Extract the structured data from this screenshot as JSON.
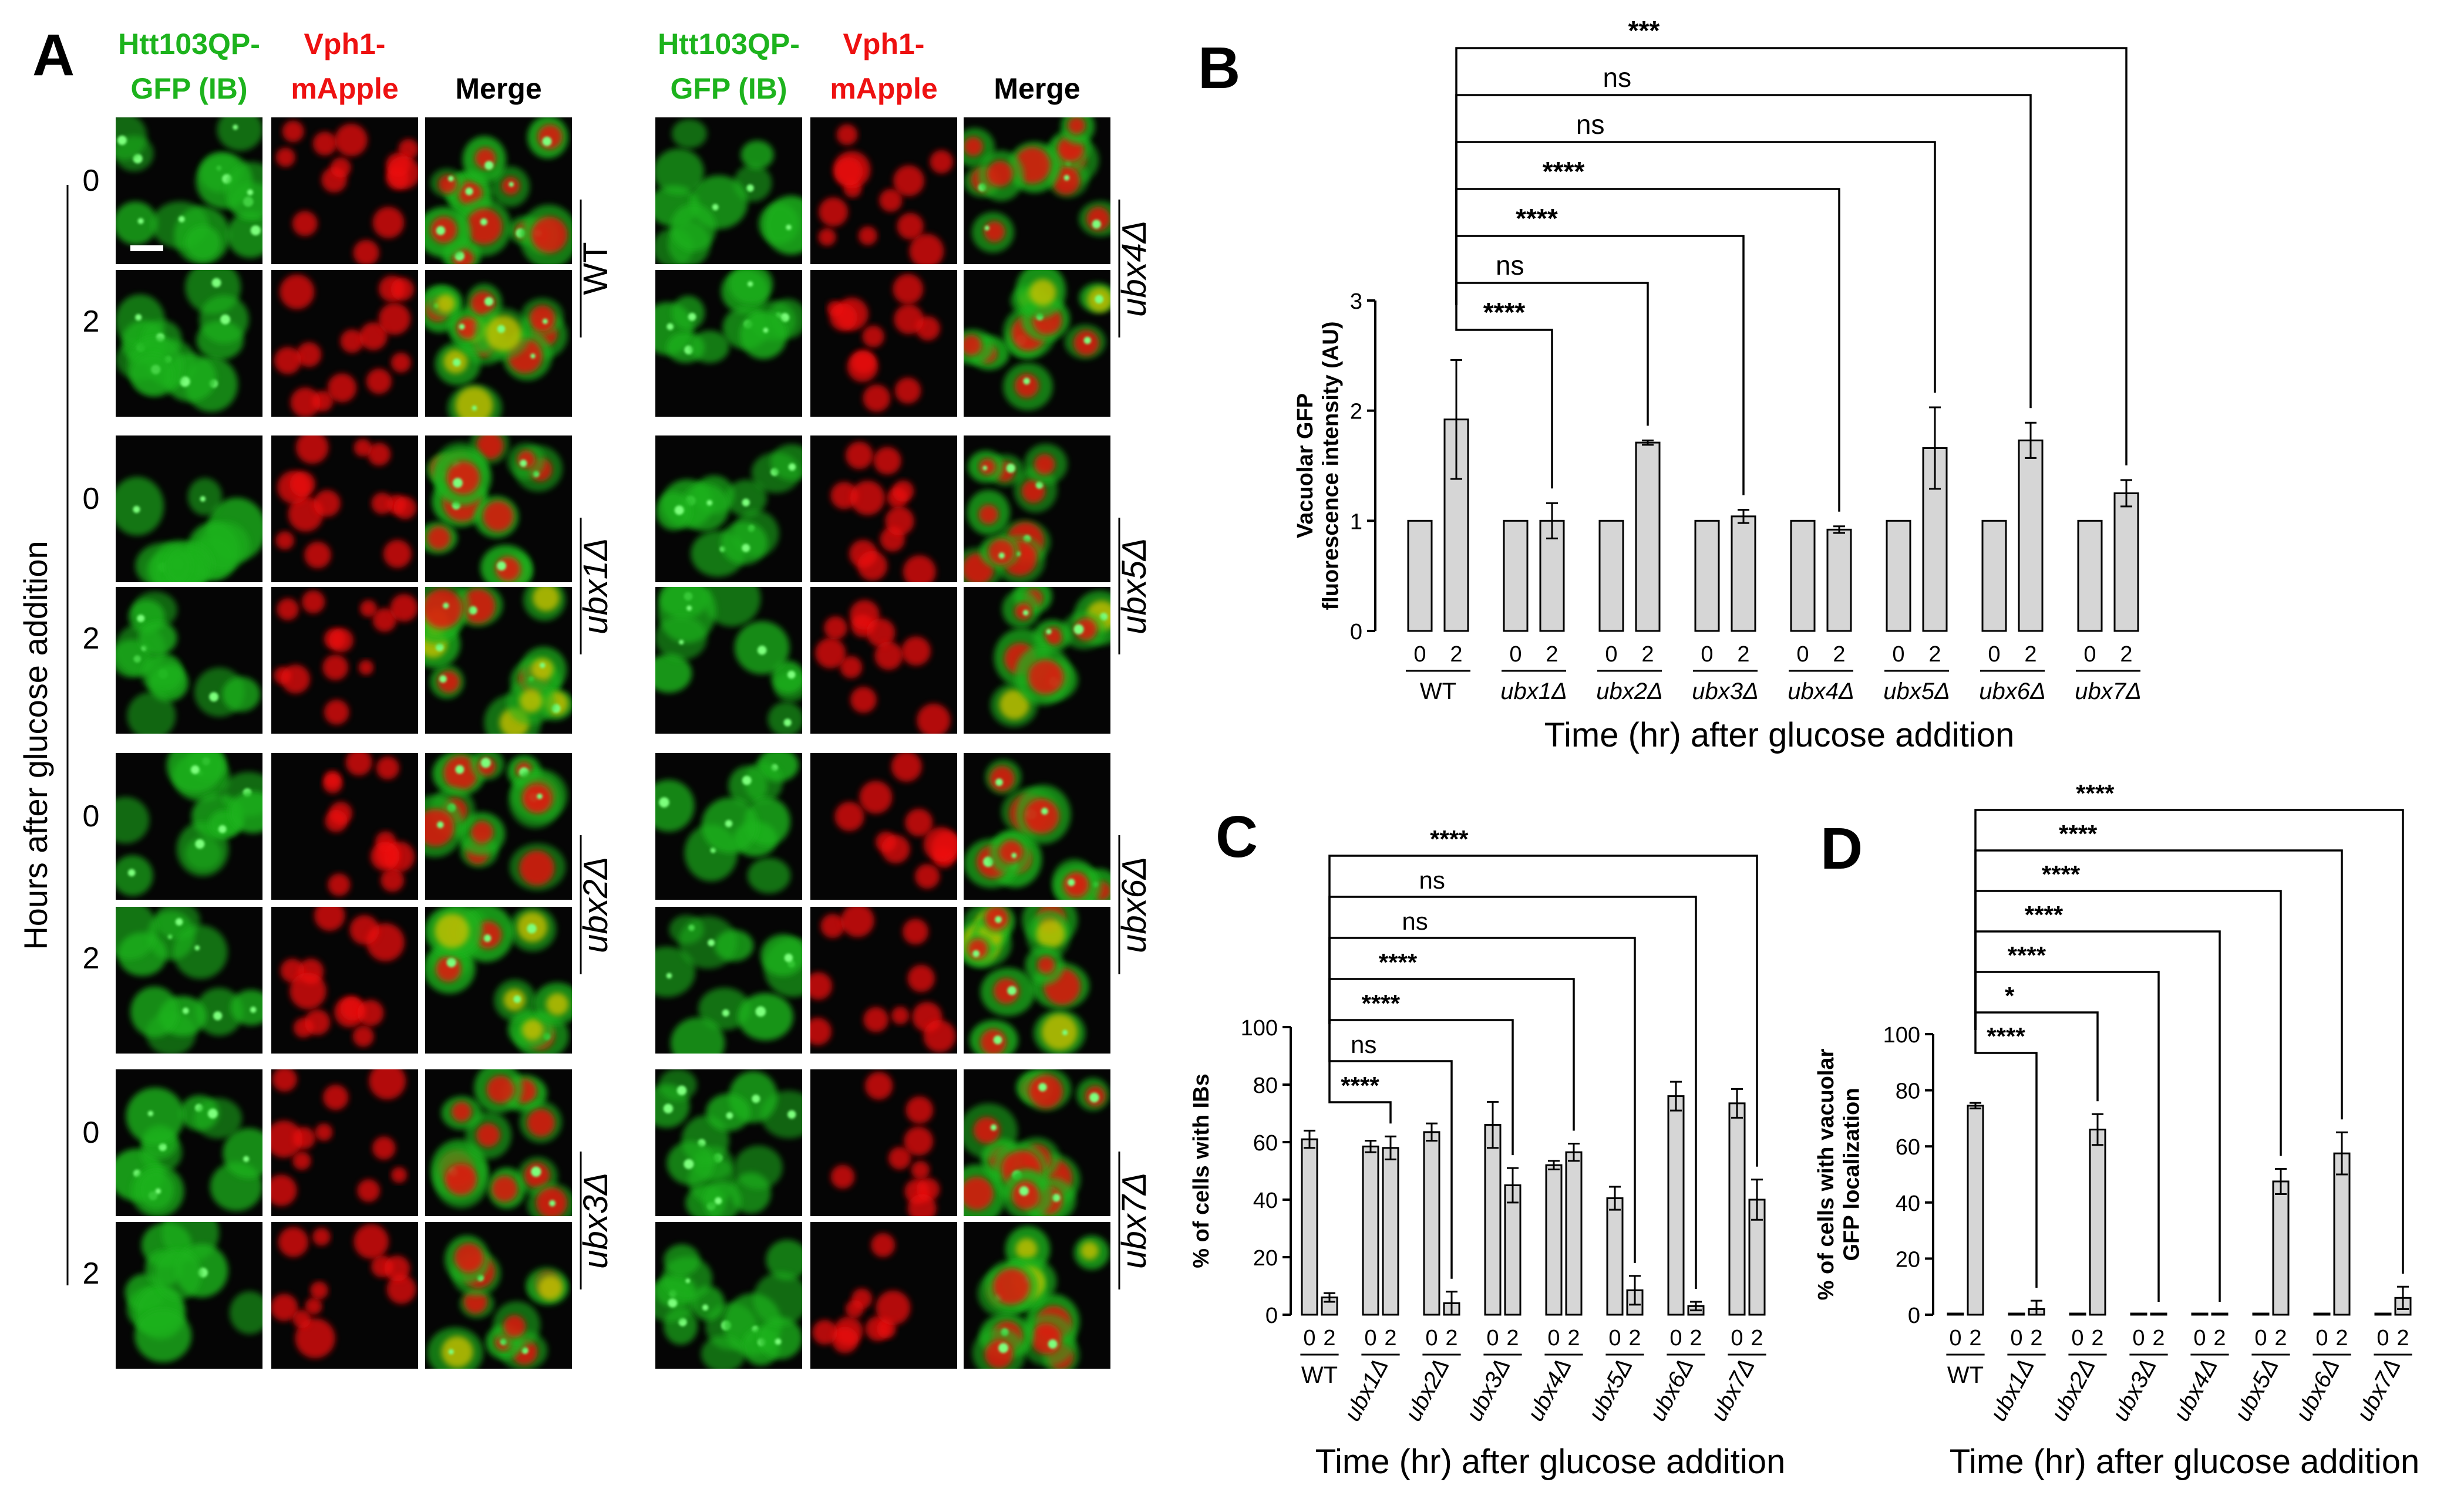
{
  "panel_letters": {
    "a": "A",
    "b": "B",
    "c": "C",
    "d": "D"
  },
  "panel_a": {
    "column_headers": [
      {
        "line1": "Htt103QP-",
        "line2": "GFP (IB)",
        "color": "#1db31d"
      },
      {
        "line1": "Vph1-",
        "line2": "mApple",
        "color": "#ee1111"
      },
      {
        "line1": "Merge",
        "line2": "",
        "color": "#000000"
      }
    ],
    "y_axis_label": "Hours after glucose addition",
    "time_labels": [
      "0",
      "2"
    ],
    "strains_left": [
      "WT",
      "ubx1Δ",
      "ubx2Δ",
      "ubx3Δ"
    ],
    "strains_right": [
      "ubx4Δ",
      "ubx5Δ",
      "ubx6Δ",
      "ubx7Δ"
    ],
    "colors": {
      "gfp": "#1db31d",
      "mapple": "#ee1111",
      "yellow": "#c8c000",
      "background": "#050505"
    }
  },
  "chart_data": [
    {
      "panel": "B",
      "type": "bar",
      "ylabel": "Vacuolar GFP fluorescence intensity (AU)",
      "xlabel": "Time (hr) after glucose addition",
      "ylim": [
        0,
        3
      ],
      "yticks": [
        "0",
        "1",
        "2",
        "3"
      ],
      "groups": [
        "WT",
        "ubx1Δ",
        "ubx2Δ",
        "ubx3Δ",
        "ubx4Δ",
        "ubx5Δ",
        "ubx6Δ",
        "ubx7Δ"
      ],
      "time_points": [
        "0",
        "2"
      ],
      "values_0h": [
        1,
        1,
        1,
        1,
        1,
        1,
        1,
        1
      ],
      "values_2h": [
        1.92,
        1.0,
        1.71,
        1.04,
        0.92,
        1.66,
        1.73,
        1.25
      ],
      "errors_2h": [
        0.54,
        0.16,
        0.02,
        0.06,
        0.03,
        0.37,
        0.16,
        0.12
      ],
      "comparisons": [
        {
          "to": "ubx1Δ",
          "label": "****"
        },
        {
          "to": "ubx2Δ",
          "label": "ns"
        },
        {
          "to": "ubx3Δ",
          "label": "****"
        },
        {
          "to": "ubx4Δ",
          "label": "****"
        },
        {
          "to": "ubx5Δ",
          "label": "ns"
        },
        {
          "to": "ubx6Δ",
          "label": "ns"
        },
        {
          "to": "ubx7Δ",
          "label": "***"
        }
      ]
    },
    {
      "panel": "C",
      "type": "bar",
      "ylabel": "% of cells with IBs",
      "xlabel": "Time (hr) after glucose addition",
      "ylim": [
        0,
        100
      ],
      "yticks": [
        "0",
        "20",
        "40",
        "60",
        "80",
        "100"
      ],
      "groups": [
        "WT",
        "ubx1Δ",
        "ubx2Δ",
        "ubx3Δ",
        "ubx4Δ",
        "ubx5Δ",
        "ubx6Δ",
        "ubx7Δ"
      ],
      "time_points": [
        "0",
        "2"
      ],
      "values_0h": [
        61,
        58.5,
        63.5,
        66,
        52,
        40.5,
        76,
        73.5
      ],
      "errors_0h": [
        3,
        2,
        3,
        8,
        1.5,
        4,
        5,
        5
      ],
      "values_2h": [
        6,
        58,
        4,
        45,
        56.5,
        8.5,
        3,
        40
      ],
      "errors_2h": [
        1.5,
        4,
        4,
        6,
        3,
        5,
        1.5,
        7
      ],
      "comparisons": [
        {
          "to": "ubx1Δ",
          "label": "****"
        },
        {
          "to": "ubx2Δ",
          "label": "ns"
        },
        {
          "to": "ubx3Δ",
          "label": "****"
        },
        {
          "to": "ubx4Δ",
          "label": "****"
        },
        {
          "to": "ubx5Δ",
          "label": "ns"
        },
        {
          "to": "ubx6Δ",
          "label": "ns"
        },
        {
          "to": "ubx7Δ",
          "label": "****"
        }
      ]
    },
    {
      "panel": "D",
      "type": "bar",
      "ylabel": "% of cells with vacuolar GFP localization",
      "xlabel": "Time (hr) after glucose addition",
      "ylim": [
        0,
        100
      ],
      "yticks": [
        "0",
        "20",
        "40",
        "60",
        "80",
        "100"
      ],
      "groups": [
        "WT",
        "ubx1Δ",
        "ubx2Δ",
        "ubx3Δ",
        "ubx4Δ",
        "ubx5Δ",
        "ubx6Δ",
        "ubx7Δ"
      ],
      "time_points": [
        "0",
        "2"
      ],
      "values_0h": [
        0,
        0,
        0,
        0,
        0,
        0,
        0,
        0
      ],
      "values_2h": [
        74.5,
        2,
        66,
        0,
        0,
        47.5,
        57.5,
        6
      ],
      "errors_2h": [
        1,
        3,
        5.5,
        0,
        0,
        4.5,
        7.5,
        4
      ],
      "comparisons": [
        {
          "to": "ubx1Δ",
          "label": "****"
        },
        {
          "to": "ubx2Δ",
          "label": "*"
        },
        {
          "to": "ubx3Δ",
          "label": "****"
        },
        {
          "to": "ubx4Δ",
          "label": "****"
        },
        {
          "to": "ubx5Δ",
          "label": "****"
        },
        {
          "to": "ubx6Δ",
          "label": "****"
        },
        {
          "to": "ubx7Δ",
          "label": "****"
        }
      ]
    }
  ]
}
